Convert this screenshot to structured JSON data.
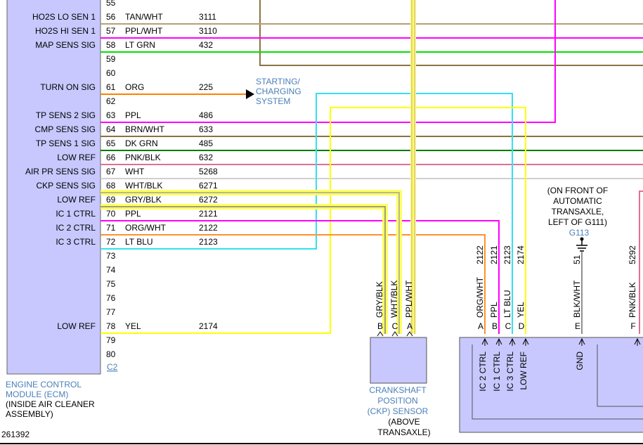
{
  "ecm": {
    "rows": [
      {
        "pin": 55
      },
      {
        "pin": 56,
        "signal": "HO2S LO SEN 1",
        "color": "TAN/WHT",
        "circuit": 3111
      },
      {
        "pin": 57,
        "signal": "HO2S HI SEN 1",
        "color": "PPL/WHT",
        "circuit": 3110
      },
      {
        "pin": 58,
        "signal": "MAP SENS SIG",
        "color": "LT GRN",
        "circuit": 432
      },
      {
        "pin": 59
      },
      {
        "pin": 60
      },
      {
        "pin": 61,
        "signal": "TURN ON SIG",
        "color": "ORG",
        "circuit": 225
      },
      {
        "pin": 62
      },
      {
        "pin": 63,
        "signal": "TP SENS 2 SIG",
        "color": "PPL",
        "circuit": 486
      },
      {
        "pin": 64,
        "signal": "CMP SENS SIG",
        "color": "BRN/WHT",
        "circuit": 633
      },
      {
        "pin": 65,
        "signal": "TP SENS 1 SIG",
        "color": "DK GRN",
        "circuit": 485
      },
      {
        "pin": 66,
        "signal": "LOW REF",
        "color": "PNK/BLK",
        "circuit": 632
      },
      {
        "pin": 67,
        "signal": "AIR PR SENS SIG",
        "color": "WHT",
        "circuit": 5268
      },
      {
        "pin": 68,
        "signal": "CKP SENS SIG",
        "color": "WHT/BLK",
        "circuit": 6271
      },
      {
        "pin": 69,
        "signal": "LOW REF",
        "color": "GRY/BLK",
        "circuit": 6272
      },
      {
        "pin": 70,
        "signal": "IC 1 CTRL",
        "color": "PPL",
        "circuit": 2121
      },
      {
        "pin": 71,
        "signal": "IC 2 CTRL",
        "color": "ORG/WHT",
        "circuit": 2122
      },
      {
        "pin": 72,
        "signal": "IC 3 CTRL",
        "color": "LT BLU",
        "circuit": 2123
      },
      {
        "pin": 73
      },
      {
        "pin": 74
      },
      {
        "pin": 75
      },
      {
        "pin": 76
      },
      {
        "pin": 77
      },
      {
        "pin": 78,
        "signal": "LOW REF",
        "color": "YEL",
        "circuit": 2174
      },
      {
        "pin": 79
      },
      {
        "pin": 80
      }
    ],
    "connector": "C2",
    "name": [
      "ENGINE CONTROL",
      "MODULE (ECM)"
    ],
    "location": [
      "(INSIDE AIR CLEANER",
      "ASSEMBLY)"
    ]
  },
  "starting": [
    "STARTING/",
    "CHARGING",
    "SYSTEM"
  ],
  "ckp": {
    "pins": [
      {
        "pin": "B",
        "color": "GRY/BLK"
      },
      {
        "pin": "C",
        "color": "WHT/BLK"
      },
      {
        "pin": "A",
        "color": "PPL/WHT"
      }
    ],
    "name": [
      "CRANKSHAFT",
      "POSITION",
      "(CKP) SENSOR"
    ],
    "location": [
      "(ABOVE",
      "TRANSAXLE)"
    ]
  },
  "ground": {
    "note": [
      "(ON FRONT OF",
      "AUTOMATIC",
      "TRANSAXLE,",
      "LEFT OF G111)"
    ],
    "id": "G113"
  },
  "module": {
    "pins": [
      {
        "pin": "A",
        "circuit": 2122,
        "color": "ORG/WHT",
        "signal": "IC 2 CTRL"
      },
      {
        "pin": "B",
        "circuit": 2121,
        "color": "PPL",
        "signal": "IC 1 CTRL"
      },
      {
        "pin": "C",
        "circuit": 2123,
        "color": "LT BLU",
        "signal": "IC 3 CTRL"
      },
      {
        "pin": "D",
        "circuit": 2174,
        "color": "YEL",
        "signal": "LOW REF"
      },
      {
        "pin": "E",
        "circuit": 51,
        "color": "BLK/WHT",
        "signal": "GND"
      },
      {
        "pin": "F",
        "circuit": 5292,
        "color": "PNK/BLK"
      }
    ]
  },
  "footer": {
    "id": 261392
  }
}
